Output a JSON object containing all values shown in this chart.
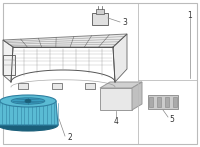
{
  "background_color": "#ffffff",
  "border_color": "#bbbbbb",
  "lc": "#888888",
  "lc_dark": "#555555",
  "blower_fill": "#5abbd4",
  "blower_dark": "#2e7fa0",
  "blower_rim": "#1a5f7a",
  "blower_mid": "#3a9dbf",
  "filter_face": "#e8e8e8",
  "filter_top": "#d0d0d0",
  "filter_right": "#c0c0c0",
  "filter_edge": "#999999",
  "resistor_fill": "#cccccc",
  "resistor_edge": "#888888",
  "label_fs": 5.5,
  "label_color": "#333333"
}
